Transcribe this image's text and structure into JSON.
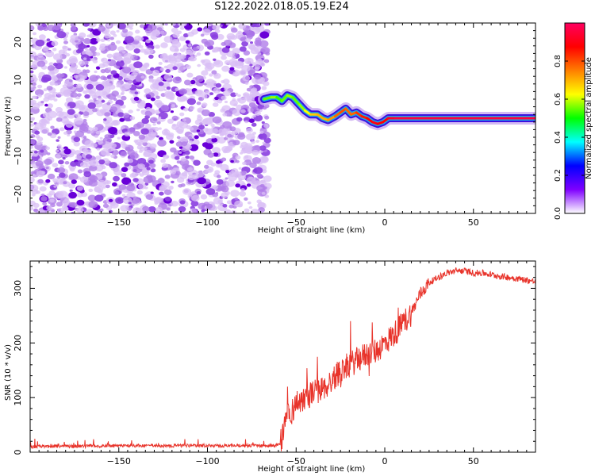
{
  "figure": {
    "title": "S122.2022.018.05.19.E24"
  },
  "chart_data": [
    {
      "type": "heatmap",
      "xlabel": "Height of straight line (km)",
      "ylabel": "Frequency (Hz)",
      "xlim": [
        -200,
        85
      ],
      "ylim": [
        -25,
        25
      ],
      "xticks": [
        -150,
        -100,
        -50,
        0,
        50
      ],
      "yticks": [
        -20,
        -10,
        0,
        10,
        20
      ],
      "noise_region_x": [
        -200,
        -66
      ],
      "ridge": {
        "x": [
          -68,
          -64,
          -61,
          -58,
          -55,
          -52,
          -48,
          -45,
          -42,
          -38,
          -35,
          -32,
          -28,
          -25,
          -22,
          -19,
          -16,
          -13,
          -10,
          -7,
          -4,
          -1,
          2,
          6,
          10,
          15,
          20,
          30,
          40,
          50,
          60,
          70,
          85
        ],
        "y": [
          5.0,
          5.5,
          5.5,
          4.5,
          6.0,
          5.5,
          3.5,
          2.0,
          1.0,
          1.0,
          0.0,
          -0.5,
          0.5,
          1.5,
          2.5,
          1.0,
          1.5,
          0.5,
          0.0,
          -1.0,
          -1.5,
          -1.0,
          0.0,
          0.0,
          0.0,
          0.0,
          0.0,
          0.0,
          0.0,
          0.0,
          0.0,
          0.0,
          0.0
        ],
        "amplitude": [
          0.5,
          0.6,
          0.55,
          0.5,
          0.6,
          0.55,
          0.55,
          0.6,
          0.65,
          0.7,
          0.7,
          0.7,
          0.75,
          0.8,
          0.8,
          0.75,
          0.8,
          0.85,
          0.85,
          0.9,
          0.9,
          0.85,
          0.9,
          0.95,
          0.95,
          0.95,
          0.95,
          0.95,
          0.95,
          0.95,
          0.95,
          0.95,
          0.95
        ]
      },
      "colorbar": {
        "label": "Normalized spectral amplitude",
        "range": [
          0,
          1
        ],
        "ticks": [
          "0.0",
          "0.2",
          "0.4",
          "0.6",
          "0.8"
        ],
        "tick_values": [
          0,
          0.2,
          0.4,
          0.6,
          0.8
        ],
        "colors": [
          "#ffffff",
          "#7f00ff",
          "#0000ff",
          "#00ffff",
          "#00ff00",
          "#ffff00",
          "#ff7f00",
          "#ff0000",
          "#ff0060"
        ]
      }
    },
    {
      "type": "line",
      "xlabel": "Height of straight line (km)",
      "ylabel": "SNR (10 * v/v)",
      "xlim": [
        -200,
        85
      ],
      "ylim": [
        0,
        350
      ],
      "xticks": [
        -150,
        -100,
        -50,
        0,
        50
      ],
      "yticks": [
        0,
        100,
        200,
        300
      ],
      "series": [
        {
          "color": "#e8332a",
          "x": [
            -200,
            -150,
            -100,
            -70,
            -59,
            -57,
            -55,
            -53,
            -50,
            -45,
            -40,
            -35,
            -30,
            -25,
            -20,
            -15,
            -10,
            -5,
            0,
            5,
            10,
            15,
            20,
            25,
            30,
            35,
            40,
            45,
            50,
            55,
            60,
            65,
            70,
            75,
            80,
            85
          ],
          "values": [
            10,
            12,
            12,
            12,
            13,
            40,
            75,
            70,
            90,
            100,
            110,
            115,
            130,
            150,
            160,
            170,
            180,
            185,
            200,
            215,
            235,
            255,
            290,
            310,
            320,
            328,
            332,
            332,
            328,
            328,
            325,
            322,
            320,
            318,
            315,
            312
          ]
        }
      ]
    }
  ]
}
